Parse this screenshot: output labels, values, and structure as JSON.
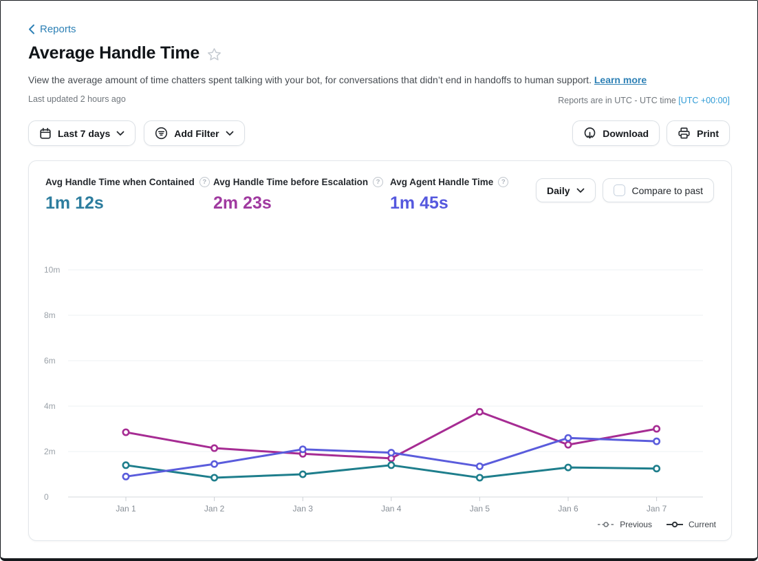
{
  "header": {
    "back_label": "Reports",
    "title": "Average Handle Time",
    "description": "View the average amount of time chatters spent talking with your bot, for conversations that didn’t end in handoffs to human support.",
    "learn_more_label": "Learn more",
    "last_updated": "Last updated 2 hours ago",
    "timezone_note": "Reports are in UTC - UTC time",
    "timezone_value": "[UTC +00:00]"
  },
  "toolbar": {
    "date_range_label": "Last 7 days",
    "add_filter_label": "Add Filter",
    "download_label": "Download",
    "print_label": "Print"
  },
  "card": {
    "metrics": [
      {
        "label": "Avg Handle Time when Contained",
        "value": "1m 12s",
        "color": "#2d7d9e"
      },
      {
        "label": "Avg Handle Time before Escalation",
        "value": "2m 23s",
        "color": "#a03aa0"
      },
      {
        "label": "Avg Agent Handle Time",
        "value": "1m 45s",
        "color": "#5558de"
      }
    ],
    "interval_label": "Daily",
    "compare_label": "Compare to past",
    "compare_checked": false
  },
  "chart_data": {
    "type": "line",
    "x_labels": [
      "Jan 1",
      "Jan 2",
      "Jan 3",
      "Jan 4",
      "Jan 5",
      "Jan 6",
      "Jan 7"
    ],
    "unit": "minutes",
    "ylim": [
      0,
      10
    ],
    "grid": true,
    "y_ticks": [
      {
        "value": 0,
        "label": "0"
      },
      {
        "value": 2,
        "label": "2m"
      },
      {
        "value": 4,
        "label": "4m"
      },
      {
        "value": 6,
        "label": "6m"
      },
      {
        "value": 8,
        "label": "8m"
      },
      {
        "value": 10,
        "label": "10m"
      }
    ],
    "series": [
      {
        "name": "Avg Handle Time before Escalation (Current)",
        "color": "#a62c93",
        "values": [
          2.85,
          2.15,
          1.9,
          1.7,
          3.75,
          2.3,
          3.0
        ]
      },
      {
        "name": "Avg Handle Time when Contained (Current)",
        "color": "#1e7e8c",
        "values": [
          1.4,
          0.85,
          1.0,
          1.4,
          0.85,
          1.3,
          1.25
        ]
      },
      {
        "name": "Avg Agent Handle Time (Current)",
        "color": "#5a5cdc",
        "values": [
          0.9,
          1.45,
          2.1,
          1.95,
          1.35,
          2.6,
          2.45
        ]
      }
    ],
    "legend": [
      {
        "label": "Previous",
        "style": "dashed",
        "color": "#70767a"
      },
      {
        "label": "Current",
        "style": "solid",
        "color": "#33383d"
      }
    ],
    "legend_position": "bottom-right"
  }
}
